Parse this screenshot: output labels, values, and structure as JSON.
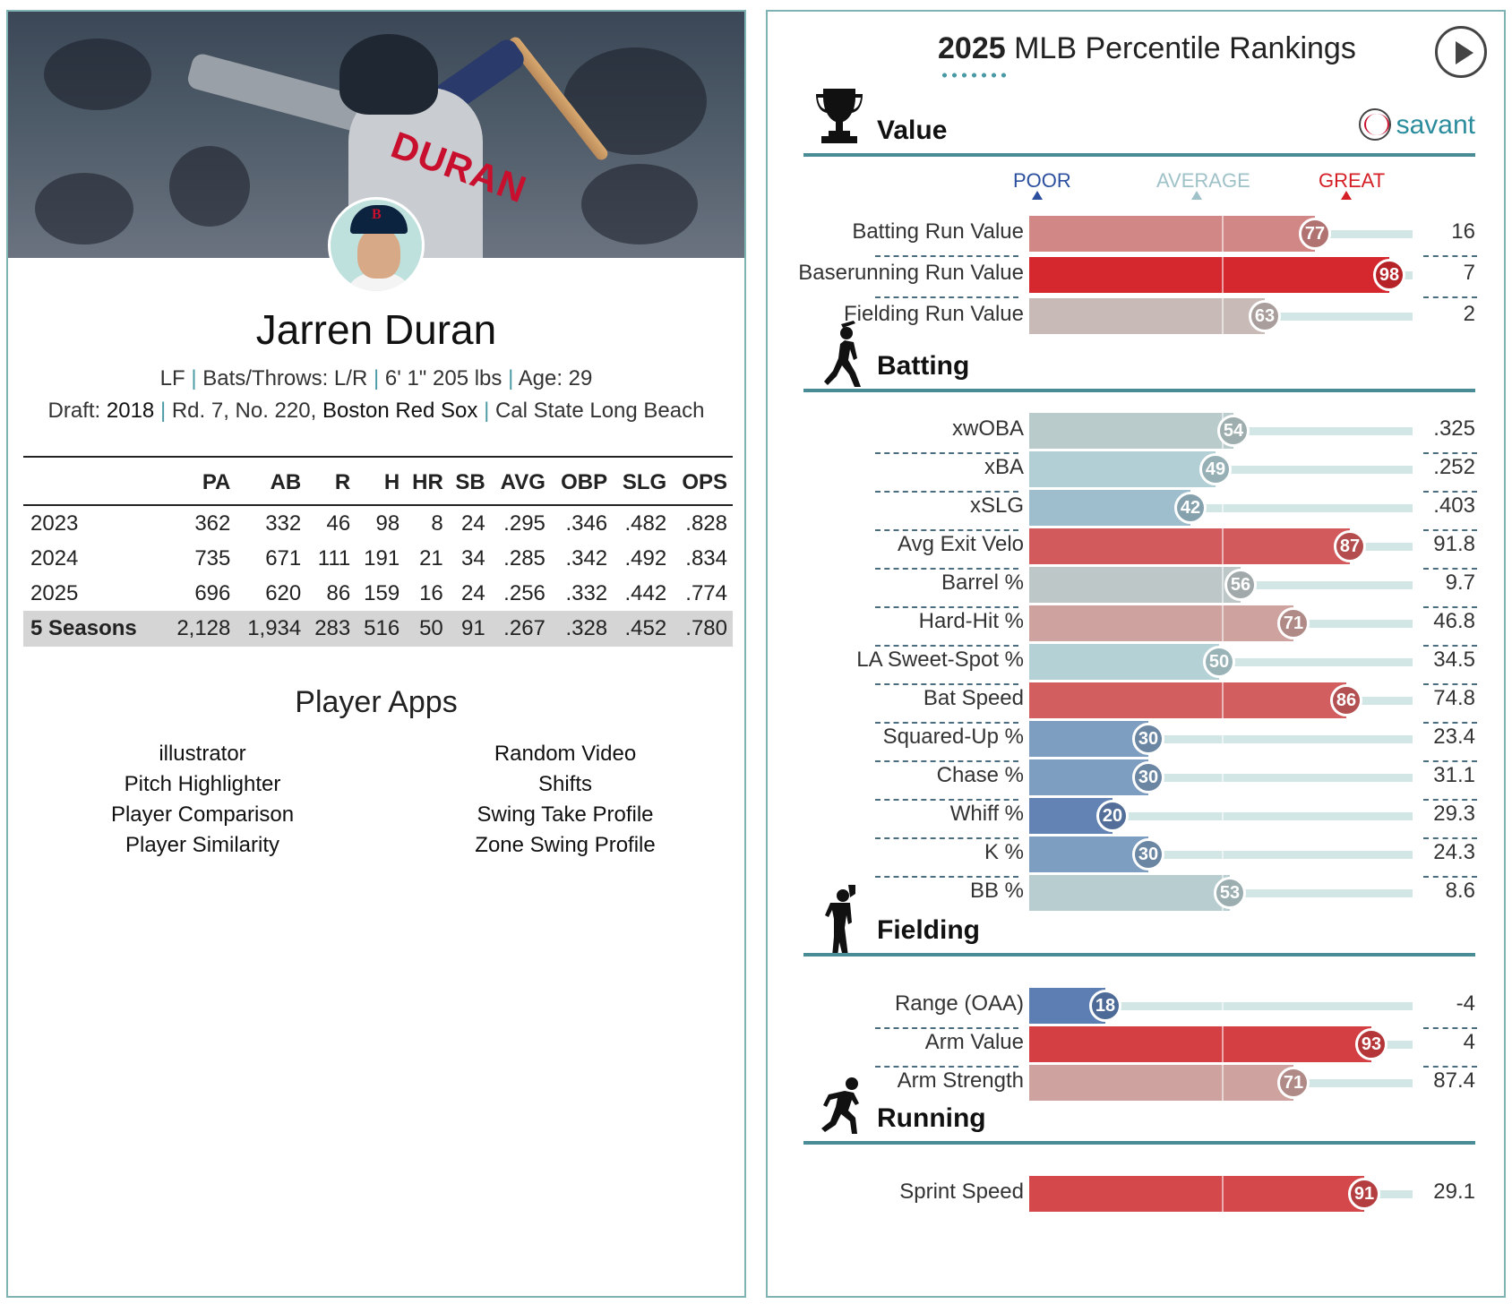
{
  "player": {
    "name": "Jarren Duran",
    "position": "LF",
    "bats_throws": "Bats/Throws: L/R",
    "size": "6' 1\" 205 lbs",
    "age": "Age: 29",
    "draft_prefix": "Draft:",
    "draft_year": "2018",
    "draft_pick": "Rd. 7, No. 220,",
    "draft_team": "Boston Red Sox",
    "school": "Cal State Long Beach",
    "jersey_text": "DURAN"
  },
  "stats": {
    "columns": [
      "",
      "PA",
      "AB",
      "R",
      "H",
      "HR",
      "SB",
      "AVG",
      "OBP",
      "SLG",
      "OPS"
    ],
    "rows": [
      [
        "2023",
        "362",
        "332",
        "46",
        "98",
        "8",
        "24",
        ".295",
        ".346",
        ".482",
        ".828"
      ],
      [
        "2024",
        "735",
        "671",
        "111",
        "191",
        "21",
        "34",
        ".285",
        ".342",
        ".492",
        ".834"
      ],
      [
        "2025",
        "696",
        "620",
        "86",
        "159",
        "16",
        "24",
        ".256",
        ".332",
        ".442",
        ".774"
      ]
    ],
    "total": [
      "5 Seasons",
      "2,128",
      "1,934",
      "283",
      "516",
      "50",
      "91",
      ".267",
      ".328",
      ".452",
      ".780"
    ]
  },
  "apps": {
    "title": "Player Apps",
    "left": [
      "illustrator",
      "Pitch Highlighter",
      "Player Comparison",
      "Player Similarity"
    ],
    "right": [
      "Random Video",
      "Shifts",
      "Swing Take Profile",
      "Zone Swing Profile"
    ]
  },
  "rankings": {
    "title_year": "2025",
    "title_rest": " MLB Percentile Rankings",
    "brand": "savant",
    "legend": {
      "poor": "POOR",
      "average": "AVERAGE",
      "great": "GREAT"
    },
    "legend_colors": {
      "poor": "#2b4f9e",
      "average": "#9fc2c8",
      "great": "#d41f26"
    },
    "sections": [
      {
        "name": "Value",
        "icon": "trophy-icon",
        "metrics": [
          {
            "label": "Batting Run Value",
            "pct": 77,
            "value": "16"
          },
          {
            "label": "Baserunning Run Value",
            "pct": 98,
            "value": "7"
          },
          {
            "label": "Fielding Run Value",
            "pct": 63,
            "value": "2"
          }
        ]
      },
      {
        "name": "Batting",
        "icon": "batter-icon",
        "metrics": [
          {
            "label": "xwOBA",
            "pct": 54,
            "value": ".325"
          },
          {
            "label": "xBA",
            "pct": 49,
            "value": ".252"
          },
          {
            "label": "xSLG",
            "pct": 42,
            "value": ".403"
          },
          {
            "label": "Avg Exit Velo",
            "pct": 87,
            "value": "91.8"
          },
          {
            "label": "Barrel %",
            "pct": 56,
            "value": "9.7"
          },
          {
            "label": "Hard-Hit %",
            "pct": 71,
            "value": "46.8"
          },
          {
            "label": "LA Sweet-Spot %",
            "pct": 50,
            "value": "34.5"
          },
          {
            "label": "Bat Speed",
            "pct": 86,
            "value": "74.8"
          },
          {
            "label": "Squared-Up %",
            "pct": 30,
            "value": "23.4"
          },
          {
            "label": "Chase %",
            "pct": 30,
            "value": "31.1"
          },
          {
            "label": "Whiff %",
            "pct": 20,
            "value": "29.3"
          },
          {
            "label": "K %",
            "pct": 30,
            "value": "24.3"
          },
          {
            "label": "BB %",
            "pct": 53,
            "value": "8.6"
          }
        ]
      },
      {
        "name": "Fielding",
        "icon": "fielder-icon",
        "metrics": [
          {
            "label": "Range (OAA)",
            "pct": 18,
            "value": "-4"
          },
          {
            "label": "Arm Value",
            "pct": 93,
            "value": "4"
          },
          {
            "label": "Arm Strength",
            "pct": 71,
            "value": "87.4"
          }
        ]
      },
      {
        "name": "Running",
        "icon": "runner-icon",
        "metrics": [
          {
            "label": "Sprint Speed",
            "pct": 91,
            "value": "29.1"
          }
        ]
      }
    ]
  }
}
